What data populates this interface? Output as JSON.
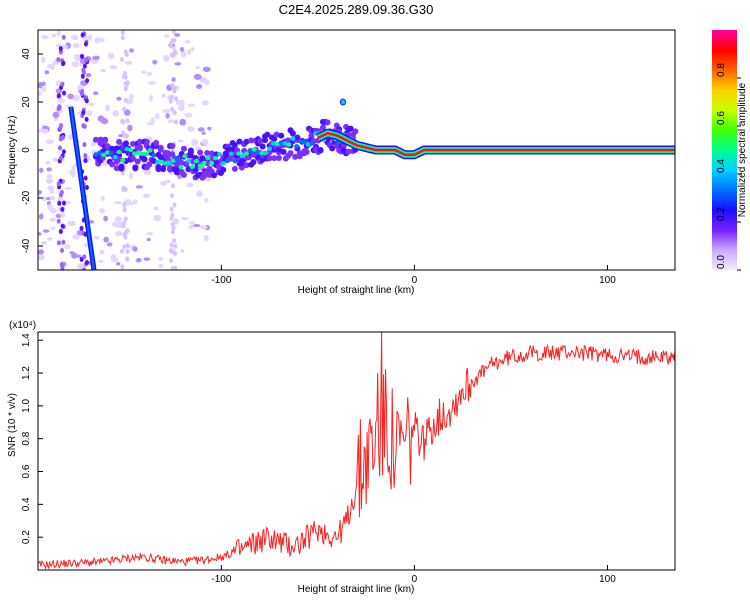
{
  "title": "C2E4.2025.289.09.36.G30",
  "chart_data": [
    {
      "type": "heatmap",
      "title": "C2E4.2025.289.09.36.G30",
      "xlabel": "Height of straight line (km)",
      "ylabel": "Frequency (Hz)",
      "xlim": [
        -195,
        135
      ],
      "ylim": [
        -50,
        50
      ],
      "xticks": [
        "-100",
        "0",
        "100"
      ],
      "yticks": [
        "40",
        "20",
        "0",
        "-20",
        "-40"
      ],
      "colorbar": {
        "label": "Normalized spectral amplitude",
        "range": [
          0,
          1
        ],
        "ticks": [
          "0.0",
          "0.2",
          "0.4",
          "0.6",
          "0.8"
        ],
        "colors": [
          "#f4ecff",
          "#c9a8ff",
          "#7a1fff",
          "#1a10ff",
          "#0070ff",
          "#00d0ff",
          "#00ff90",
          "#40ff00",
          "#c8ff00",
          "#ffd000",
          "#ff6000",
          "#ff0000",
          "#ff00a0"
        ]
      },
      "ridge": {
        "x": [
          -165,
          -150,
          -130,
          -120,
          -110,
          -100,
          -90,
          -80,
          -70,
          -60,
          -50,
          -45,
          -40,
          -35,
          -30,
          -25,
          -20,
          -10,
          -5,
          0,
          5,
          10,
          30,
          60,
          90,
          120,
          135
        ],
        "y": [
          -1,
          -2,
          -3,
          -5,
          -6,
          -4,
          -2,
          0,
          2,
          3,
          5,
          7,
          6,
          4,
          2,
          1,
          0,
          0,
          -2,
          -2,
          0,
          0,
          0,
          0,
          0,
          0,
          0
        ]
      },
      "diagonal_trace": {
        "x": [
          -178,
          -166
        ],
        "y": [
          18,
          -50
        ]
      }
    },
    {
      "type": "line",
      "title": "",
      "xlabel": "Height of straight line (km)",
      "ylabel": "SNR (10 * v/v)",
      "multiplier": "(x10⁴)",
      "xlim": [
        -195,
        135
      ],
      "ylim": [
        0,
        1.45
      ],
      "xticks": [
        "-100",
        "0",
        "100"
      ],
      "yticks": [
        "0.2",
        "0.4",
        "0.6",
        "0.8",
        "1.0",
        "1.2",
        "1.4"
      ],
      "color": "#ff2020",
      "series": [
        {
          "name": "SNR",
          "x": [
            -195,
            -180,
            -160,
            -150,
            -140,
            -130,
            -120,
            -110,
            -100,
            -90,
            -85,
            -80,
            -75,
            -70,
            -65,
            -60,
            -55,
            -50,
            -45,
            -40,
            -35,
            -30,
            -25,
            -20,
            -15,
            -10,
            -5,
            0,
            5,
            10,
            15,
            20,
            25,
            30,
            35,
            40,
            50,
            60,
            70,
            80,
            90,
            100,
            110,
            120,
            135
          ],
          "y": [
            0.03,
            0.04,
            0.05,
            0.07,
            0.08,
            0.06,
            0.05,
            0.06,
            0.08,
            0.12,
            0.15,
            0.18,
            0.2,
            0.17,
            0.15,
            0.16,
            0.2,
            0.25,
            0.22,
            0.2,
            0.3,
            0.5,
            0.7,
            0.75,
            0.9,
            0.7,
            0.75,
            0.85,
            0.78,
            0.9,
            0.95,
            1.0,
            1.1,
            1.15,
            1.2,
            1.25,
            1.3,
            1.32,
            1.32,
            1.33,
            1.32,
            1.31,
            1.3,
            1.3,
            1.3
          ]
        }
      ]
    }
  ]
}
